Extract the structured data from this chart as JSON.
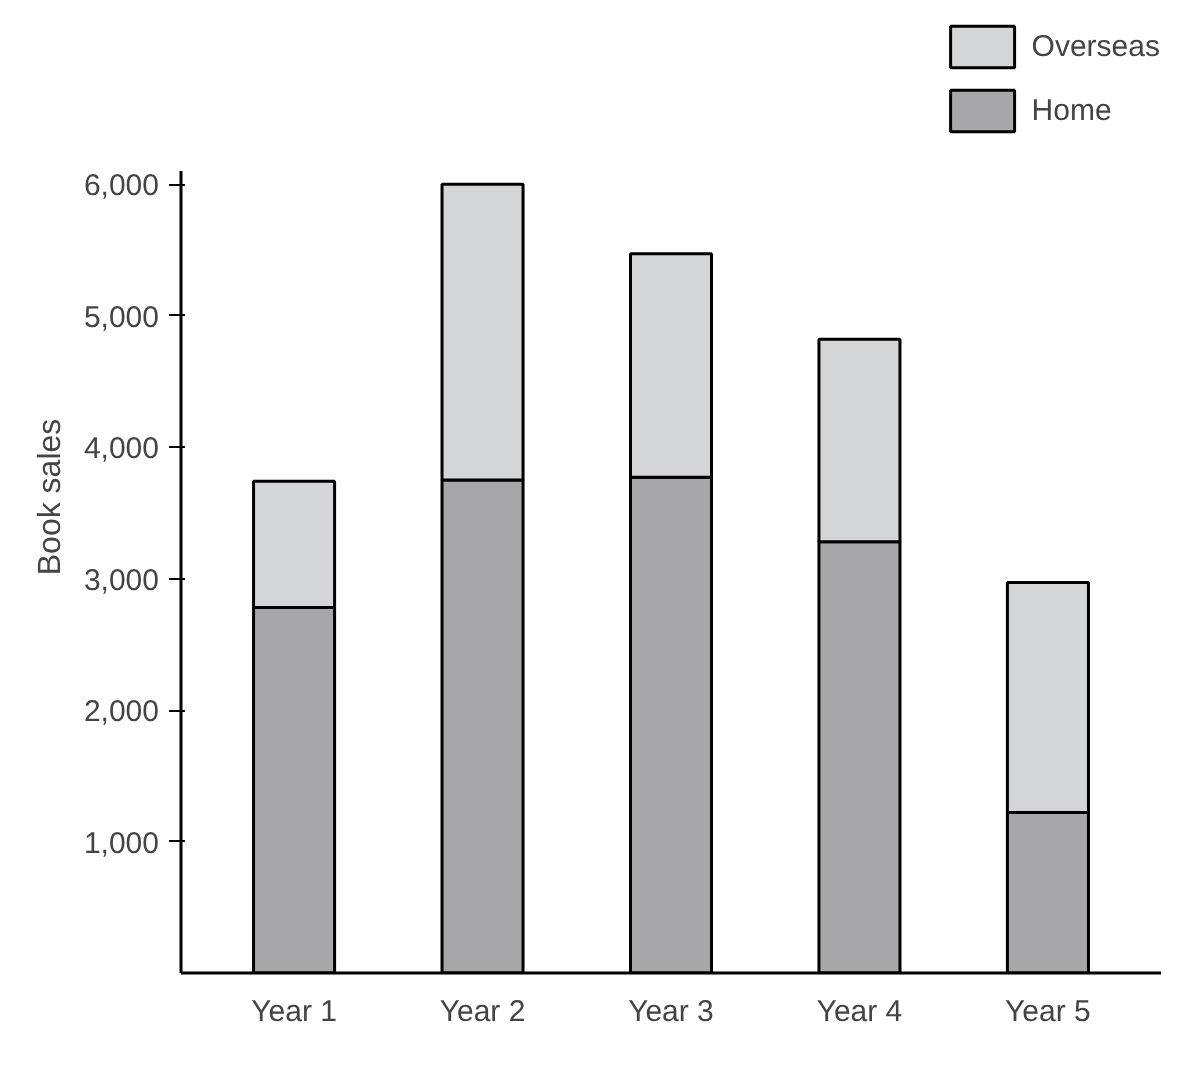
{
  "chart_data": {
    "type": "bar",
    "stacked": true,
    "categories": [
      "Year 1",
      "Year 2",
      "Year 3",
      "Year 4",
      "Year 5"
    ],
    "series": [
      {
        "name": "Home",
        "color": "#a7a7aa",
        "values": [
          2780,
          3750,
          3770,
          3280,
          1220
        ]
      },
      {
        "name": "Overseas",
        "color": "#d4d5d7",
        "values": [
          960,
          2250,
          1700,
          1540,
          1750
        ]
      }
    ],
    "ylabel": "Book sales",
    "ylim": [
      0,
      6100
    ],
    "yticks": [
      {
        "value": 1000,
        "label": "1,000"
      },
      {
        "value": 2000,
        "label": "2,000"
      },
      {
        "value": 3000,
        "label": "3,000"
      },
      {
        "value": 4000,
        "label": "4,000"
      },
      {
        "value": 5000,
        "label": "5,000"
      },
      {
        "value": 6000,
        "label": "6,000"
      }
    ],
    "legend": "top right",
    "grid": false
  }
}
